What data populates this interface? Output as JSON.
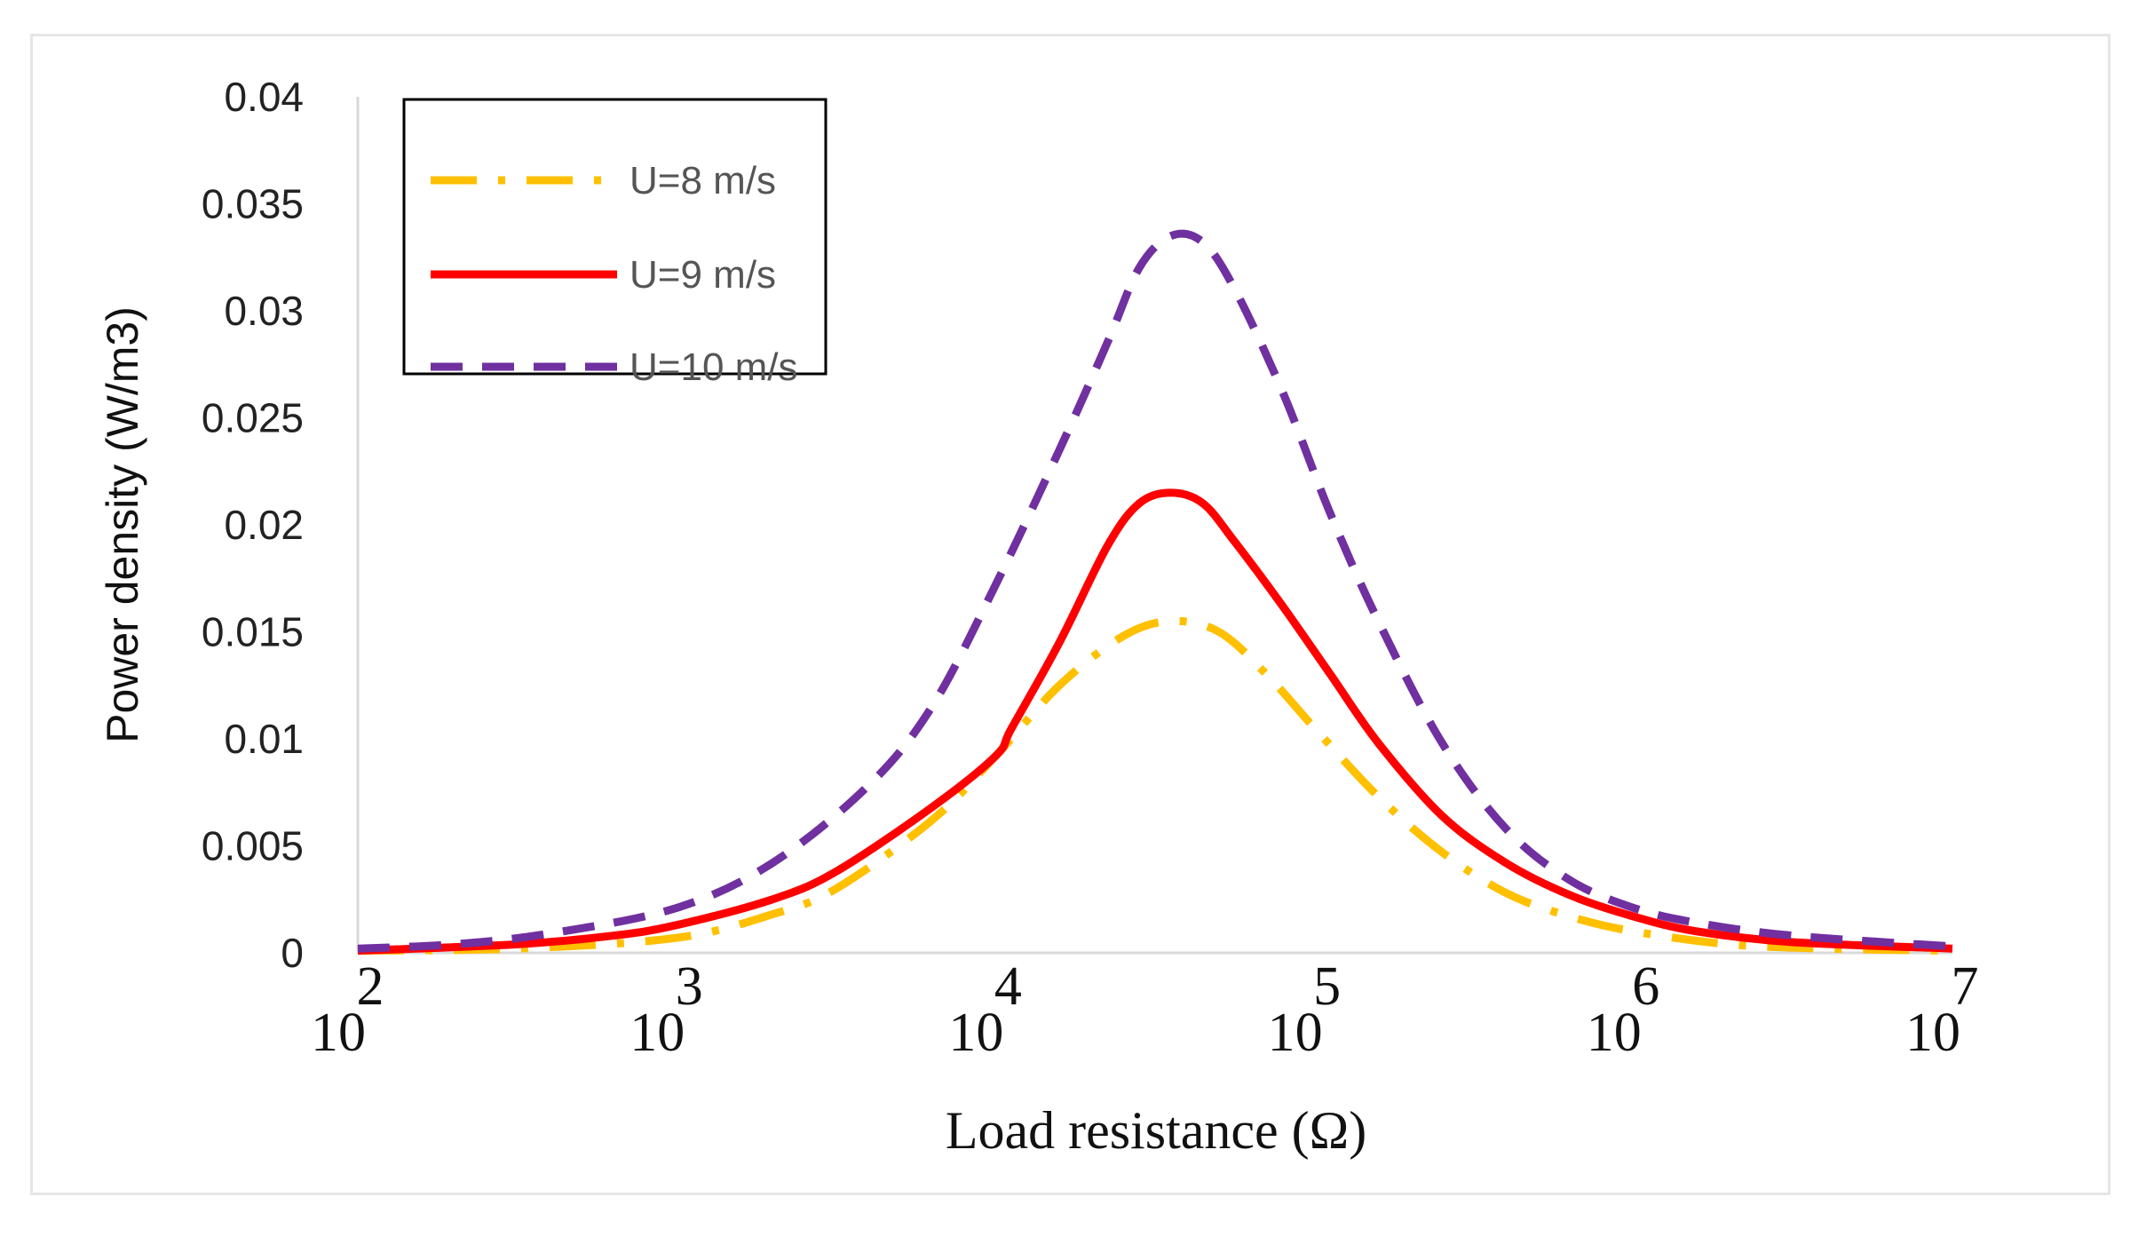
{
  "chart_data": {
    "type": "line",
    "title": "",
    "xlabel": "Load resistance (Ω)",
    "ylabel": "Power density (W/m3)",
    "xscale": "log",
    "x_exponents": [
      2,
      3,
      4,
      5,
      6,
      7
    ],
    "x_tick_base": "10",
    "x_tick_exponents": [
      "2",
      "3",
      "4",
      "5",
      "6",
      "7"
    ],
    "xlim": [
      100,
      10000000
    ],
    "ylim": [
      0,
      0.04
    ],
    "y_ticks": [
      "0",
      "0.005",
      "0.01",
      "0.015",
      "0.02",
      "0.025",
      "0.03",
      "0.035",
      "0.04"
    ],
    "grid": false,
    "legend_position": "top-left",
    "series": [
      {
        "name": "U=8 m/s",
        "color": "#FFC000",
        "style": "dash-dot",
        "points": [
          [
            2,
            0.0001
          ],
          [
            2.5,
            0.0002
          ],
          [
            3,
            0.0007
          ],
          [
            3.3,
            0.0018
          ],
          [
            3.5,
            0.003
          ],
          [
            3.8,
            0.0062
          ],
          [
            4,
            0.0092
          ],
          [
            4.2,
            0.0125
          ],
          [
            4.4,
            0.0148
          ],
          [
            4.55,
            0.0155
          ],
          [
            4.7,
            0.015
          ],
          [
            4.85,
            0.013
          ],
          [
            5,
            0.0105
          ],
          [
            5.2,
            0.0073
          ],
          [
            5.4,
            0.0047
          ],
          [
            5.6,
            0.0028
          ],
          [
            5.8,
            0.0017
          ],
          [
            6,
            0.001
          ],
          [
            6.3,
            0.0004
          ],
          [
            6.6,
            0.0002
          ],
          [
            7,
            0.0001
          ]
        ]
      },
      {
        "name": "U=9 m/s",
        "color": "#FF0000",
        "style": "solid",
        "points": [
          [
            2,
            0.0001
          ],
          [
            2.5,
            0.0004
          ],
          [
            2.8,
            0.0008
          ],
          [
            3,
            0.0013
          ],
          [
            3.3,
            0.0025
          ],
          [
            3.5,
            0.0038
          ],
          [
            3.8,
            0.0068
          ],
          [
            4,
            0.0092
          ],
          [
            4.05,
            0.0105
          ],
          [
            4.2,
            0.0145
          ],
          [
            4.35,
            0.019
          ],
          [
            4.45,
            0.021
          ],
          [
            4.55,
            0.0215
          ],
          [
            4.65,
            0.021
          ],
          [
            4.75,
            0.0192
          ],
          [
            4.9,
            0.0162
          ],
          [
            5.05,
            0.013
          ],
          [
            5.2,
            0.0098
          ],
          [
            5.4,
            0.0064
          ],
          [
            5.6,
            0.0042
          ],
          [
            5.8,
            0.0027
          ],
          [
            6,
            0.0017
          ],
          [
            6.2,
            0.001
          ],
          [
            6.5,
            0.0005
          ],
          [
            7,
            0.0002
          ]
        ]
      },
      {
        "name": "U=10 m/s",
        "color": "#7030A0",
        "style": "dashed",
        "points": [
          [
            2,
            0.0002
          ],
          [
            2.3,
            0.0004
          ],
          [
            2.6,
            0.0009
          ],
          [
            3,
            0.0021
          ],
          [
            3.3,
            0.0042
          ],
          [
            3.6,
            0.0078
          ],
          [
            3.8,
            0.0115
          ],
          [
            4,
            0.0172
          ],
          [
            4.2,
            0.0235
          ],
          [
            4.35,
            0.0285
          ],
          [
            4.45,
            0.032
          ],
          [
            4.55,
            0.0335
          ],
          [
            4.65,
            0.0332
          ],
          [
            4.75,
            0.031
          ],
          [
            4.9,
            0.0262
          ],
          [
            5.05,
            0.0205
          ],
          [
            5.2,
            0.0155
          ],
          [
            5.4,
            0.0098
          ],
          [
            5.6,
            0.0058
          ],
          [
            5.8,
            0.0034
          ],
          [
            6,
            0.0021
          ],
          [
            6.2,
            0.0014
          ],
          [
            6.5,
            0.0008
          ],
          [
            7,
            0.0003
          ]
        ]
      }
    ]
  }
}
